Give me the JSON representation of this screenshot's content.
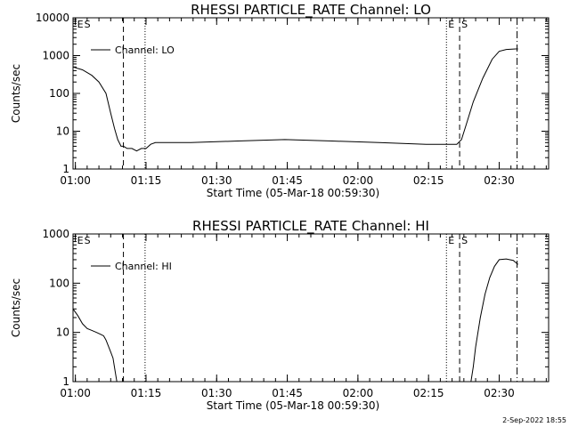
{
  "chart_data": [
    {
      "type": "line",
      "title": "RHESSI PARTICLE_RATE Channel: LO",
      "xlabel": "Start Time (05-Mar-18 00:59:30)",
      "ylabel": "Counts/sec",
      "yscale": "log",
      "ylim": [
        1,
        10000
      ],
      "xlim_minutes": [
        0,
        101
      ],
      "xtick_labels": [
        "01:00",
        "01:15",
        "01:30",
        "01:45",
        "02:00",
        "02:15",
        "02:30"
      ],
      "ytick_labels": [
        "1",
        "10",
        "100",
        "1000",
        "10000"
      ],
      "legend": {
        "label": "Channel: LO",
        "position": "top-left"
      },
      "markers": [
        {
          "label": "E",
          "minute": 0.5,
          "style": "none"
        },
        {
          "label": "S",
          "minute": 0.5,
          "style": "none"
        },
        {
          "label": "",
          "minute": 10.7,
          "style": "dashed"
        },
        {
          "label": "",
          "minute": 15.3,
          "style": "dotted"
        },
        {
          "label": "E",
          "minute": 79.3,
          "style": "dotted"
        },
        {
          "label": "S",
          "minute": 82.1,
          "style": "dashed"
        },
        {
          "label": "",
          "minute": 94.3,
          "style": "dashdot"
        }
      ],
      "series": [
        {
          "name": "Channel: LO",
          "x": [
            0,
            2,
            4,
            5.5,
            7,
            8,
            8.8,
            9.5,
            10.2,
            10.7,
            11.5,
            12.5,
            13.5,
            14.5,
            15.5,
            16.5,
            17.5,
            25,
            35,
            45,
            55,
            65,
            75,
            80,
            81.5,
            82.5,
            83.5,
            85,
            87,
            89,
            90.5,
            92,
            94,
            94.5
          ],
          "y": [
            500,
            420,
            300,
            200,
            100,
            30,
            12,
            6,
            4,
            4,
            3.5,
            3.5,
            3,
            3.5,
            3.5,
            4.5,
            5,
            5,
            5.5,
            6,
            5.5,
            5,
            4.5,
            4.5,
            4.5,
            6,
            15,
            60,
            250,
            800,
            1300,
            1450,
            1500,
            1500
          ]
        }
      ]
    },
    {
      "type": "line",
      "title": "RHESSI PARTICLE_RATE Channel: HI",
      "xlabel": "Start Time (05-Mar-18 00:59:30)",
      "ylabel": "Counts/sec",
      "yscale": "log",
      "ylim": [
        1,
        1000
      ],
      "xlim_minutes": [
        0,
        101
      ],
      "xtick_labels": [
        "01:00",
        "01:15",
        "01:30",
        "01:45",
        "02:00",
        "02:15",
        "02:30"
      ],
      "ytick_labels": [
        "1",
        "10",
        "100",
        "1000"
      ],
      "legend": {
        "label": "Channel: HI",
        "position": "top-left"
      },
      "markers": [
        {
          "label": "E",
          "minute": 0.5,
          "style": "none"
        },
        {
          "label": "S",
          "minute": 0.5,
          "style": "none"
        },
        {
          "label": "",
          "minute": 10.7,
          "style": "dashed"
        },
        {
          "label": "",
          "minute": 15.3,
          "style": "dotted"
        },
        {
          "label": "E",
          "minute": 79.3,
          "style": "dotted"
        },
        {
          "label": "S",
          "minute": 82.1,
          "style": "dashed"
        },
        {
          "label": "",
          "minute": 94.3,
          "style": "dashdot"
        }
      ],
      "series": [
        {
          "name": "Channel: HI",
          "x": [
            0,
            1,
            2,
            3,
            4,
            5,
            6,
            6.5,
            7,
            8,
            8.5,
            9,
            9.3,
            84.5,
            85,
            85.5,
            86.5,
            87.5,
            88.5,
            89.5,
            90.5,
            92,
            93.5,
            94.5
          ],
          "y": [
            30,
            22,
            15,
            12,
            11,
            10,
            9,
            8.5,
            7,
            4,
            3,
            1.5,
            1,
            1,
            2,
            5,
            20,
            60,
            130,
            220,
            300,
            310,
            290,
            240
          ]
        }
      ]
    }
  ],
  "timestamp": "2-Sep-2022 18:55"
}
